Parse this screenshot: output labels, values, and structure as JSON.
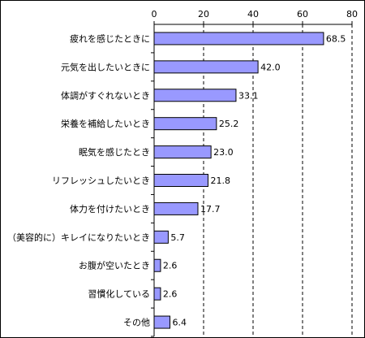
{
  "chart_data": {
    "type": "bar",
    "orientation": "horizontal",
    "title": "",
    "xlabel": "",
    "ylabel": "",
    "xlim": [
      0,
      80
    ],
    "ticks": [
      0,
      20,
      40,
      60,
      80
    ],
    "axis_position": "top",
    "grid": "dashed vertical",
    "categories": [
      "疲れを感じたときに",
      "元気を出したいときに",
      "体調がすぐれないとき",
      "栄養を補給したいとき",
      "眠気を感じたとき",
      "リフレッシュしたいとき",
      "体力を付けたいとき",
      "（美容的に）キレイになりたいとき",
      "お腹が空いたとき",
      "習慣化している",
      "その他"
    ],
    "values": [
      68.5,
      42.0,
      33.1,
      25.2,
      23.0,
      21.8,
      17.7,
      5.7,
      2.6,
      2.6,
      6.4
    ],
    "value_labels": [
      "68.5",
      "42.0",
      "33.1",
      "25.2",
      "23.0",
      "21.8",
      "17.7",
      "5.7",
      "2.6",
      "2.6",
      "6.4"
    ],
    "colors": {
      "bar_fill": "#9999ff",
      "bar_stroke": "#000000",
      "grid": "#000000"
    }
  }
}
